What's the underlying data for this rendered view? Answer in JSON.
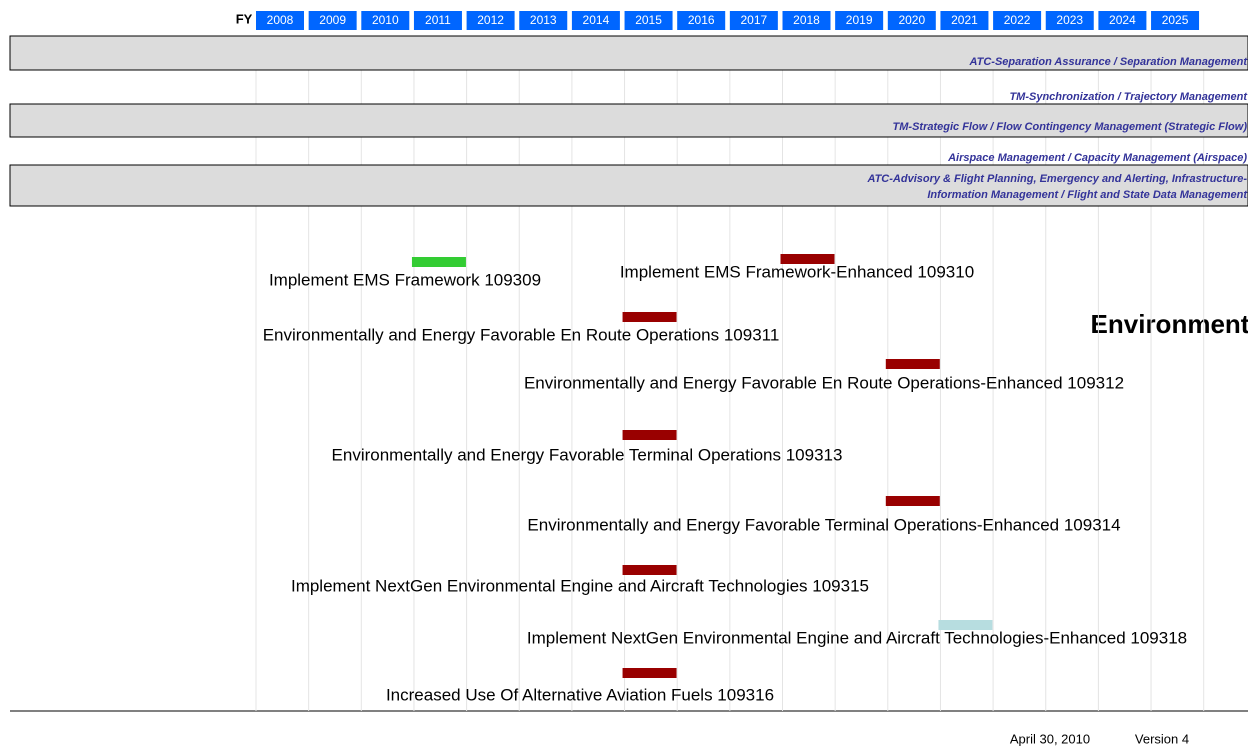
{
  "fy_label": "FY",
  "years": [
    2008,
    2009,
    2010,
    2011,
    2012,
    2013,
    2014,
    2015,
    2016,
    2017,
    2018,
    2019,
    2020,
    2021,
    2022,
    2023,
    2024,
    2025
  ],
  "bands": [
    {
      "label": "ATC-Separation Assurance / Separation Management",
      "shaded": true
    },
    {
      "label": "TM-Synchronization / Trajectory Management",
      "shaded": false
    },
    {
      "label": "TM-Strategic Flow / Flow Contingency Management (Strategic Flow)",
      "shaded": true
    },
    {
      "label": "Airspace Management / Capacity Management (Airspace)",
      "shaded": false
    },
    {
      "label": "ATC-Advisory & Flight Planning, Emergency and Alerting, Infrastructure-",
      "label2": "Information Management / Flight and State Data  Management",
      "shaded": true
    }
  ],
  "section_title": "Environment",
  "activities": [
    {
      "label": "Implement EMS Framework 109309",
      "year": 2011,
      "color": "#33cc33"
    },
    {
      "label": "Implement EMS Framework-Enhanced 109310",
      "year": 2018,
      "color": "#990000"
    },
    {
      "label": "Environmentally and Energy Favorable En Route Operations 109311",
      "year": 2015,
      "color": "#990000"
    },
    {
      "label": "Environmentally and Energy Favorable En Route Operations-Enhanced 109312",
      "year": 2020,
      "color": "#990000"
    },
    {
      "label": "Environmentally and Energy Favorable Terminal Operations 109313",
      "year": 2015,
      "color": "#990000"
    },
    {
      "label": "Environmentally and Energy Favorable Terminal Operations-Enhanced 109314",
      "year": 2020,
      "color": "#990000"
    },
    {
      "label": "Implement NextGen Environmental Engine and Aircraft Technologies 109315",
      "year": 2015,
      "color": "#990000"
    },
    {
      "label": "Implement NextGen Environmental Engine and Aircraft Technologies-Enhanced 109318",
      "year": 2021,
      "color": "#b7dde0"
    },
    {
      "label": "Increased Use Of Alternative Aviation Fuels 109316",
      "year": 2015,
      "color": "#990000"
    }
  ],
  "footer": {
    "date": "April 30, 2010",
    "version": "Version 4"
  }
}
